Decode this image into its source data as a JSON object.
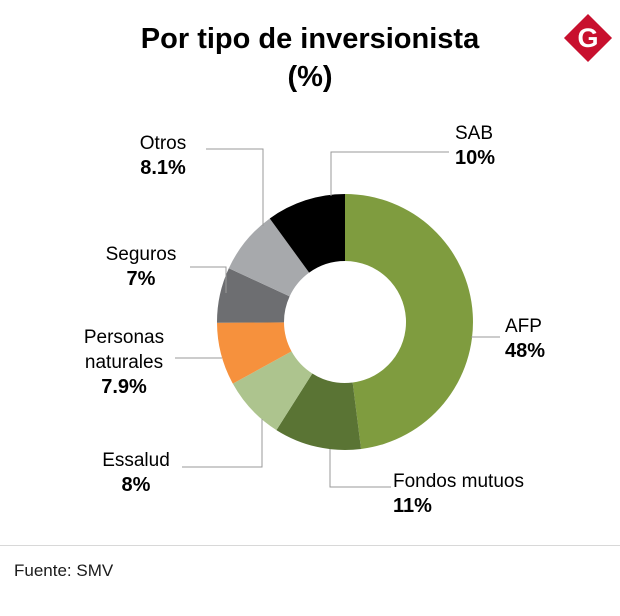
{
  "header": {
    "title_line1": "Por tipo de inversionista",
    "title_line2": "(%)",
    "logo_letter": "G",
    "logo_color": "#c8102e"
  },
  "chart_data": {
    "type": "pie",
    "donut": true,
    "unit": "%",
    "title": "Por tipo de inversionista (%)",
    "direction": "clockwise",
    "start_angle_deg": 0,
    "slices": [
      {
        "label": "AFP",
        "value": 48,
        "display": "48%",
        "color": "#7f9c3f"
      },
      {
        "label": "Fondos mutuos",
        "value": 11,
        "display": "11%",
        "color": "#5a7434"
      },
      {
        "label": "Essalud",
        "value": 8,
        "display": "8%",
        "color": "#adc48e"
      },
      {
        "label": "Personas naturales",
        "value": 7.9,
        "display": "7.9%",
        "color": "#f6913d"
      },
      {
        "label": "Seguros",
        "value": 7,
        "display": "7%",
        "color": "#6d6e71"
      },
      {
        "label": "Otros",
        "value": 8.1,
        "display": "8.1%",
        "color": "#a7a9ac"
      },
      {
        "label": "SAB",
        "value": 10,
        "display": "10%",
        "color": "#000000"
      }
    ],
    "leader_line_color": "#999999"
  },
  "footer": {
    "source": "Fuente: SMV"
  }
}
